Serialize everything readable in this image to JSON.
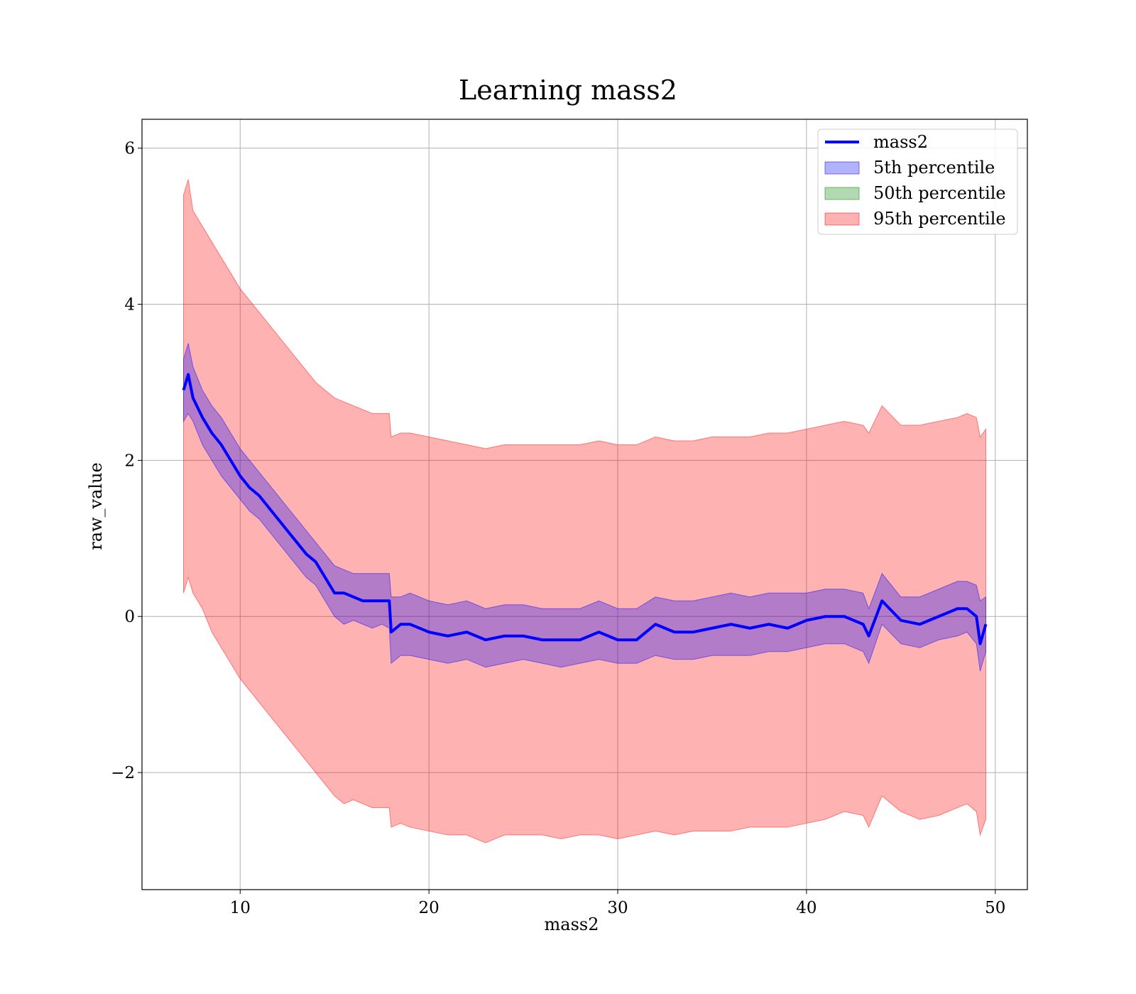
{
  "chart_data": {
    "type": "line",
    "title": "Learning mass2",
    "xlabel": "mass2",
    "ylabel": "raw_value",
    "xlim": [
      4.8,
      51.7
    ],
    "ylim": [
      -3.5,
      6.37
    ],
    "xticks": [
      10,
      20,
      30,
      40,
      50
    ],
    "yticks": [
      -2,
      0,
      2,
      4,
      6
    ],
    "xtick_labels": [
      "10",
      "20",
      "30",
      "40",
      "50"
    ],
    "ytick_labels": [
      "−2",
      "0",
      "2",
      "4",
      "6"
    ],
    "grid": true,
    "legend_placement": "top-right",
    "legend": [
      {
        "label": "mass2",
        "kind": "line",
        "color": "#0000ff"
      },
      {
        "label": "5th percentile",
        "kind": "patch",
        "color": "#0000ff",
        "alpha": 0.3
      },
      {
        "label": "50th percentile",
        "kind": "patch",
        "color": "#008000",
        "alpha": 0.3
      },
      {
        "label": "95th percentile",
        "kind": "patch",
        "color": "#ff0000",
        "alpha": 0.3
      }
    ],
    "series": [
      {
        "name": "mass2",
        "x": [
          7,
          7.25,
          7.5,
          8,
          8.5,
          9,
          9.5,
          10,
          10.5,
          11,
          11.5,
          12,
          12.5,
          13,
          13.5,
          14,
          14.5,
          15,
          15.5,
          16,
          16.5,
          17,
          17.5,
          17.9,
          18,
          18.5,
          19,
          20,
          21,
          22,
          23,
          24,
          25,
          26,
          27,
          28,
          29,
          30,
          31,
          32,
          33,
          34,
          35,
          36,
          37,
          38,
          39,
          40,
          41,
          42,
          43,
          43.3,
          44,
          45,
          46,
          47,
          48,
          48.5,
          49,
          49.2,
          49.5
        ],
        "y": [
          2.9,
          3.1,
          2.8,
          2.55,
          2.35,
          2.2,
          2.0,
          1.8,
          1.65,
          1.55,
          1.4,
          1.25,
          1.1,
          0.95,
          0.8,
          0.7,
          0.5,
          0.3,
          0.3,
          0.25,
          0.2,
          0.2,
          0.2,
          0.2,
          -0.2,
          -0.1,
          -0.1,
          -0.2,
          -0.25,
          -0.2,
          -0.3,
          -0.25,
          -0.25,
          -0.3,
          -0.3,
          -0.3,
          -0.2,
          -0.3,
          -0.3,
          -0.1,
          -0.2,
          -0.2,
          -0.15,
          -0.1,
          -0.15,
          -0.1,
          -0.15,
          -0.05,
          0.0,
          0.0,
          -0.1,
          -0.25,
          0.2,
          -0.05,
          -0.1,
          0.0,
          0.1,
          0.1,
          0.0,
          -0.35,
          -0.1
        ]
      },
      {
        "name": "5th percentile",
        "x": [
          7,
          7.25,
          7.5,
          8,
          8.5,
          9,
          9.5,
          10,
          10.5,
          11,
          11.5,
          12,
          12.5,
          13,
          13.5,
          14,
          14.5,
          15,
          15.5,
          16,
          16.5,
          17,
          17.5,
          17.9,
          18,
          18.5,
          19,
          20,
          21,
          22,
          23,
          24,
          25,
          26,
          27,
          28,
          29,
          30,
          31,
          32,
          33,
          34,
          35,
          36,
          37,
          38,
          39,
          40,
          41,
          42,
          43,
          43.3,
          44,
          45,
          46,
          47,
          48,
          48.5,
          49,
          49.2,
          49.5
        ],
        "lower": [
          2.5,
          2.6,
          2.5,
          2.2,
          2.0,
          1.8,
          1.65,
          1.5,
          1.35,
          1.25,
          1.1,
          0.95,
          0.8,
          0.65,
          0.5,
          0.4,
          0.2,
          0.0,
          -0.1,
          -0.05,
          -0.1,
          -0.15,
          -0.1,
          -0.15,
          -0.6,
          -0.5,
          -0.5,
          -0.55,
          -0.6,
          -0.55,
          -0.65,
          -0.6,
          -0.55,
          -0.6,
          -0.65,
          -0.6,
          -0.55,
          -0.6,
          -0.6,
          -0.5,
          -0.55,
          -0.55,
          -0.5,
          -0.5,
          -0.5,
          -0.45,
          -0.45,
          -0.4,
          -0.35,
          -0.35,
          -0.45,
          -0.6,
          -0.1,
          -0.35,
          -0.4,
          -0.3,
          -0.25,
          -0.2,
          -0.35,
          -0.7,
          -0.45
        ],
        "upper": [
          3.3,
          3.5,
          3.2,
          2.9,
          2.7,
          2.55,
          2.35,
          2.15,
          2.0,
          1.85,
          1.7,
          1.55,
          1.4,
          1.25,
          1.1,
          0.95,
          0.8,
          0.65,
          0.6,
          0.55,
          0.55,
          0.55,
          0.55,
          0.55,
          0.25,
          0.25,
          0.3,
          0.2,
          0.15,
          0.2,
          0.1,
          0.15,
          0.15,
          0.1,
          0.1,
          0.1,
          0.2,
          0.1,
          0.1,
          0.25,
          0.2,
          0.2,
          0.25,
          0.3,
          0.25,
          0.3,
          0.3,
          0.3,
          0.35,
          0.35,
          0.3,
          0.1,
          0.55,
          0.25,
          0.25,
          0.35,
          0.45,
          0.45,
          0.4,
          0.2,
          0.25
        ]
      },
      {
        "name": "95th percentile",
        "x": [
          7,
          7.25,
          7.5,
          8,
          8.5,
          9,
          9.5,
          10,
          10.5,
          11,
          11.5,
          12,
          12.5,
          13,
          13.5,
          14,
          14.5,
          15,
          15.5,
          16,
          16.5,
          17,
          17.5,
          17.9,
          18,
          18.5,
          19,
          20,
          21,
          22,
          23,
          24,
          25,
          26,
          27,
          28,
          29,
          30,
          31,
          32,
          33,
          34,
          35,
          36,
          37,
          38,
          39,
          40,
          41,
          42,
          43,
          43.3,
          44,
          45,
          46,
          47,
          48,
          48.5,
          49,
          49.2,
          49.5
        ],
        "lower": [
          0.3,
          0.5,
          0.3,
          0.1,
          -0.2,
          -0.4,
          -0.6,
          -0.8,
          -0.95,
          -1.1,
          -1.25,
          -1.4,
          -1.55,
          -1.7,
          -1.85,
          -2.0,
          -2.15,
          -2.3,
          -2.4,
          -2.35,
          -2.4,
          -2.45,
          -2.45,
          -2.45,
          -2.7,
          -2.65,
          -2.7,
          -2.75,
          -2.8,
          -2.8,
          -2.9,
          -2.8,
          -2.8,
          -2.8,
          -2.85,
          -2.8,
          -2.8,
          -2.85,
          -2.8,
          -2.75,
          -2.8,
          -2.75,
          -2.75,
          -2.75,
          -2.7,
          -2.7,
          -2.7,
          -2.65,
          -2.6,
          -2.5,
          -2.55,
          -2.7,
          -2.3,
          -2.5,
          -2.6,
          -2.55,
          -2.45,
          -2.4,
          -2.5,
          -2.8,
          -2.6
        ],
        "upper": [
          5.4,
          5.6,
          5.2,
          5.0,
          4.8,
          4.6,
          4.4,
          4.2,
          4.05,
          3.9,
          3.75,
          3.6,
          3.45,
          3.3,
          3.15,
          3.0,
          2.9,
          2.8,
          2.75,
          2.7,
          2.65,
          2.6,
          2.6,
          2.6,
          2.3,
          2.35,
          2.35,
          2.3,
          2.25,
          2.2,
          2.15,
          2.2,
          2.2,
          2.2,
          2.2,
          2.2,
          2.25,
          2.2,
          2.2,
          2.3,
          2.25,
          2.25,
          2.3,
          2.3,
          2.3,
          2.35,
          2.35,
          2.4,
          2.45,
          2.5,
          2.45,
          2.35,
          2.7,
          2.45,
          2.45,
          2.5,
          2.55,
          2.6,
          2.55,
          2.3,
          2.4
        ]
      }
    ]
  }
}
